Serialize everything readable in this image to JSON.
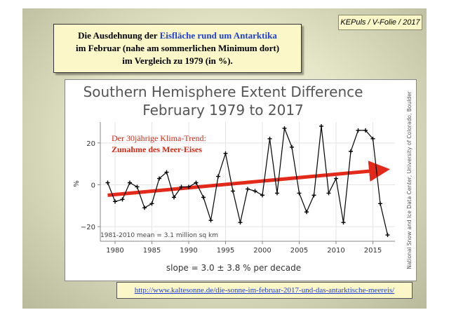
{
  "slide_tag": "KEPuls / V-Folie / 2017",
  "headline": {
    "line1_before": "Die Ausdehnung der ",
    "line1_highlight": "Eisfläche rund um Antarktika",
    "line2": "im Februar (nahe am sommerlichen Minimum dort)",
    "line3": "im Vergleich zu 1979 (in %)."
  },
  "source_link": "http://www.kaltesonne.de/die-sonne-im-februar-2017-und-das-antarktische-meereis/",
  "colors": {
    "headline_highlight": "#1f3fd6",
    "trend_arrow": "#e32a1a",
    "trend_text": "#d42a16",
    "series_line": "#000000"
  },
  "chart_data": {
    "type": "line",
    "title": "Southern Hemisphere Extent Difference",
    "subtitle": "February 1979 to 2017",
    "ylabel": "%",
    "xlabel": "",
    "xlim": [
      1978,
      2018
    ],
    "ylim": [
      -27,
      30
    ],
    "xticks": [
      1980,
      1985,
      1990,
      1995,
      2000,
      2005,
      2010,
      2015
    ],
    "yticks": [
      20,
      0,
      -20
    ],
    "grid": true,
    "marker": "plus",
    "x": [
      1979,
      1980,
      1981,
      1982,
      1983,
      1984,
      1985,
      1986,
      1987,
      1988,
      1989,
      1990,
      1991,
      1992,
      1993,
      1994,
      1995,
      1996,
      1997,
      1998,
      1999,
      2000,
      2001,
      2002,
      2003,
      2004,
      2005,
      2006,
      2007,
      2008,
      2009,
      2010,
      2011,
      2012,
      2013,
      2014,
      2015,
      2016,
      2017
    ],
    "values": [
      1,
      -8,
      -7,
      1,
      -1,
      -11,
      -9,
      3,
      6,
      -6,
      -1,
      -1,
      1,
      -6,
      -17,
      4,
      15,
      -3,
      -18,
      -2,
      -3,
      -5,
      22,
      -4,
      27,
      18,
      -4,
      -13,
      -5,
      28,
      -4,
      3,
      -18,
      16,
      26,
      26,
      22,
      -9,
      -24
    ],
    "baseline_note": "1981-2010 mean = 3.1 million sq km",
    "slope_note": "slope = 3.0 ± 3.8 % per decade",
    "side_credit": "National Snow and Ice Data Center, University of Colorado, Boulder",
    "trend_annotation": {
      "line1": "Der 30jährige Klima-Trend:",
      "line2": "Zunahme des Meer-Eises",
      "arrow_from": [
        1979,
        -5
      ],
      "arrow_to": [
        2016,
        7
      ]
    }
  }
}
